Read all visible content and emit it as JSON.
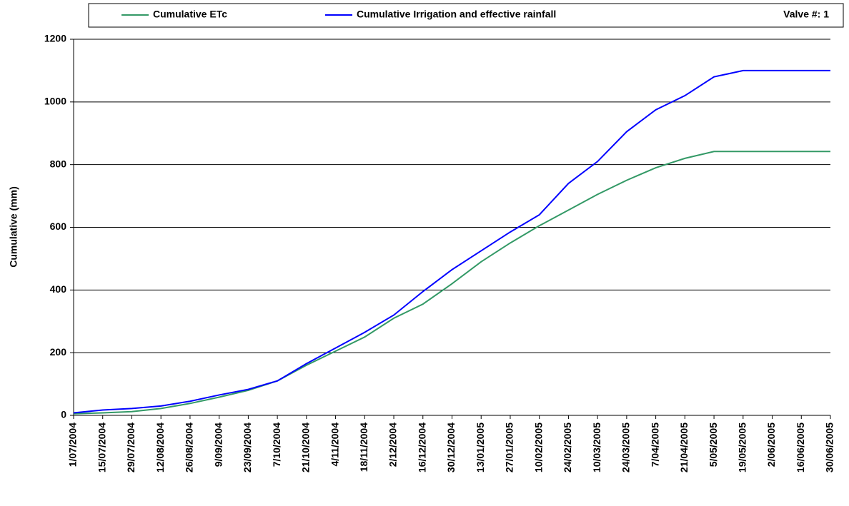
{
  "chart_data": {
    "type": "line",
    "y_label": "Cumulative (mm)",
    "legend_note": "Valve #: 1",
    "categories": [
      "1/07/2004",
      "15/07/2004",
      "29/07/2004",
      "12/08/2004",
      "26/08/2004",
      "9/09/2004",
      "23/09/2004",
      "7/10/2004",
      "21/10/2004",
      "4/11/2004",
      "18/11/2004",
      "2/12/2004",
      "16/12/2004",
      "30/12/2004",
      "13/01/2005",
      "27/01/2005",
      "10/02/2005",
      "24/02/2005",
      "10/03/2005",
      "24/03/2005",
      "7/04/2005",
      "21/04/2005",
      "5/05/2005",
      "19/05/2005",
      "2/06/2005",
      "16/06/2005",
      "30/06/2005"
    ],
    "series": [
      {
        "name": "Cumulative ETc",
        "color": "#339966",
        "values": [
          5,
          8,
          12,
          22,
          38,
          58,
          80,
          110,
          160,
          205,
          250,
          310,
          355,
          420,
          490,
          550,
          605,
          655,
          705,
          750,
          790,
          820,
          842,
          842,
          842,
          842,
          842
        ]
      },
      {
        "name": "Cumulative Irrigation and effective rainfall",
        "color": "#0000ff",
        "values": [
          8,
          17,
          22,
          30,
          45,
          65,
          83,
          110,
          165,
          215,
          265,
          320,
          395,
          465,
          525,
          585,
          640,
          740,
          810,
          905,
          975,
          1020,
          1080,
          1100,
          1100,
          1100,
          1100
        ]
      }
    ],
    "ylim": [
      0,
      1200
    ],
    "yticks": [
      0,
      200,
      400,
      600,
      800,
      1000,
      1200
    ],
    "grid": true
  }
}
